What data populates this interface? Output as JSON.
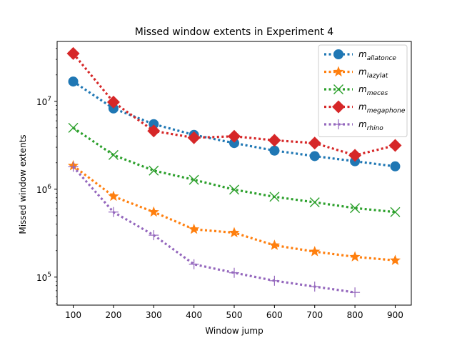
{
  "chart_data": {
    "type": "line",
    "title": "Missed window extents in Experiment 4",
    "xlabel": "Window jump",
    "ylabel": "Missed window extents",
    "yscale": "log",
    "xlim": [
      60,
      940
    ],
    "ylim": [
      48000,
      48000000
    ],
    "xticks": [
      100,
      200,
      300,
      400,
      500,
      600,
      700,
      800,
      900
    ],
    "yticks": [
      {
        "value": 100000,
        "base": "10",
        "exp": "5"
      },
      {
        "value": 1000000,
        "base": "10",
        "exp": "6"
      },
      {
        "value": 10000000,
        "base": "10",
        "exp": "7"
      }
    ],
    "grid": false,
    "legend_position": "top-right",
    "series": [
      {
        "name_base": "m",
        "name_sub": "allatonce",
        "color": "#1f77b4",
        "marker": "circle",
        "x": [
          100,
          200,
          300,
          400,
          500,
          600,
          700,
          800,
          900
        ],
        "values": [
          16800000,
          8300000,
          5500000,
          4150000,
          3350000,
          2750000,
          2380000,
          2080000,
          1820000
        ]
      },
      {
        "name_base": "m",
        "name_sub": "lazylat",
        "color": "#ff7f0e",
        "marker": "star",
        "x": [
          100,
          200,
          300,
          400,
          500,
          600,
          700,
          800,
          900
        ],
        "values": [
          1850000,
          830000,
          550000,
          350000,
          320000,
          230000,
          195000,
          170000,
          155000
        ]
      },
      {
        "name_base": "m",
        "name_sub": "meces",
        "color": "#2ca02c",
        "marker": "x",
        "x": [
          100,
          200,
          300,
          400,
          500,
          600,
          700,
          800,
          900
        ],
        "values": [
          5000000,
          2450000,
          1630000,
          1280000,
          990000,
          820000,
          710000,
          610000,
          550000
        ]
      },
      {
        "name_base": "m",
        "name_sub": "megaphone",
        "color": "#d62728",
        "marker": "diamond",
        "x": [
          100,
          200,
          300,
          400,
          500,
          600,
          700,
          800,
          900
        ],
        "values": [
          35000000,
          9800000,
          4600000,
          3850000,
          4000000,
          3600000,
          3350000,
          2430000,
          3150000
        ]
      },
      {
        "name_base": "m",
        "name_sub": "rhino",
        "color": "#9467bd",
        "marker": "plus",
        "x": [
          100,
          200,
          300,
          400,
          500,
          600,
          700,
          800
        ],
        "values": [
          1800000,
          550000,
          300000,
          140000,
          112000,
          91000,
          78000,
          67000
        ]
      }
    ]
  }
}
